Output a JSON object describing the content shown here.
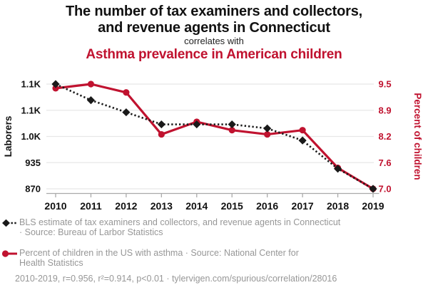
{
  "header": {
    "title_lines": [
      "The number of tax examiners and collectors,",
      "and revenue agents in Connecticut"
    ],
    "subtitle": "correlates with",
    "red_title": "Asthma prevalence in American children",
    "red_color": "#c0122f"
  },
  "chart_data": {
    "type": "line",
    "title": "The number of tax examiners and collectors, and revenue agents in Connecticut correlates with Asthma prevalence in American children",
    "x": [
      2010,
      2011,
      2012,
      2013,
      2014,
      2015,
      2016,
      2017,
      2018,
      2019
    ],
    "series": [
      {
        "name": "BLS estimate of tax examiners and collectors, and revenue agents in Connecticut",
        "axis": "left",
        "color": "#1a1a1a",
        "line_style": "dashed",
        "marker": "diamond",
        "values": [
          1130,
          1090,
          1060,
          1030,
          1030,
          1030,
          1020,
          990,
          920,
          870
        ]
      },
      {
        "name": "Percent of children in the US with asthma",
        "axis": "right",
        "color": "#c0122f",
        "line_style": "solid",
        "marker": "circle",
        "values": [
          9.4,
          9.5,
          9.3,
          8.3,
          8.6,
          8.4,
          8.3,
          8.4,
          7.5,
          7.0
        ]
      }
    ],
    "axes": {
      "left": {
        "label": "Laborers",
        "color": "#111111",
        "min": 870,
        "max": 1130,
        "ticks": [
          {
            "value": 1130,
            "label": "1.1K"
          },
          {
            "value": 1065,
            "label": "1.1K"
          },
          {
            "value": 1000,
            "label": "1.0K"
          },
          {
            "value": 935,
            "label": "935"
          },
          {
            "value": 870,
            "label": "870"
          }
        ]
      },
      "right": {
        "label": "Percent of children",
        "color": "#c0122f",
        "min": 7.0,
        "max": 9.5,
        "ticks": [
          {
            "value": 9.5,
            "label": "9.5"
          },
          {
            "value": 8.875,
            "label": "8.9"
          },
          {
            "value": 8.25,
            "label": "8.2"
          },
          {
            "value": 7.625,
            "label": "7.6"
          },
          {
            "value": 7.0,
            "label": "7.0"
          }
        ]
      }
    },
    "grid": true,
    "legend_position": "bottom"
  },
  "legend": {
    "items": [
      {
        "marker": "diamond-dashed",
        "color": "#1a1a1a",
        "lines": [
          "BLS estimate of tax examiners and collectors, and revenue agents in Connecticut",
          "· Source: Bureau of Larbor Statistics"
        ]
      },
      {
        "marker": "circle-solid",
        "color": "#c0122f",
        "lines": [
          "Percent of children in the US with asthma · Source: National Center for",
          "Health Statistics"
        ]
      }
    ]
  },
  "footer": {
    "text": "2010-2019, r=0.956, r²=0.914, p<0.01 · tylervigen.com/spurious/correlation/28016"
  }
}
